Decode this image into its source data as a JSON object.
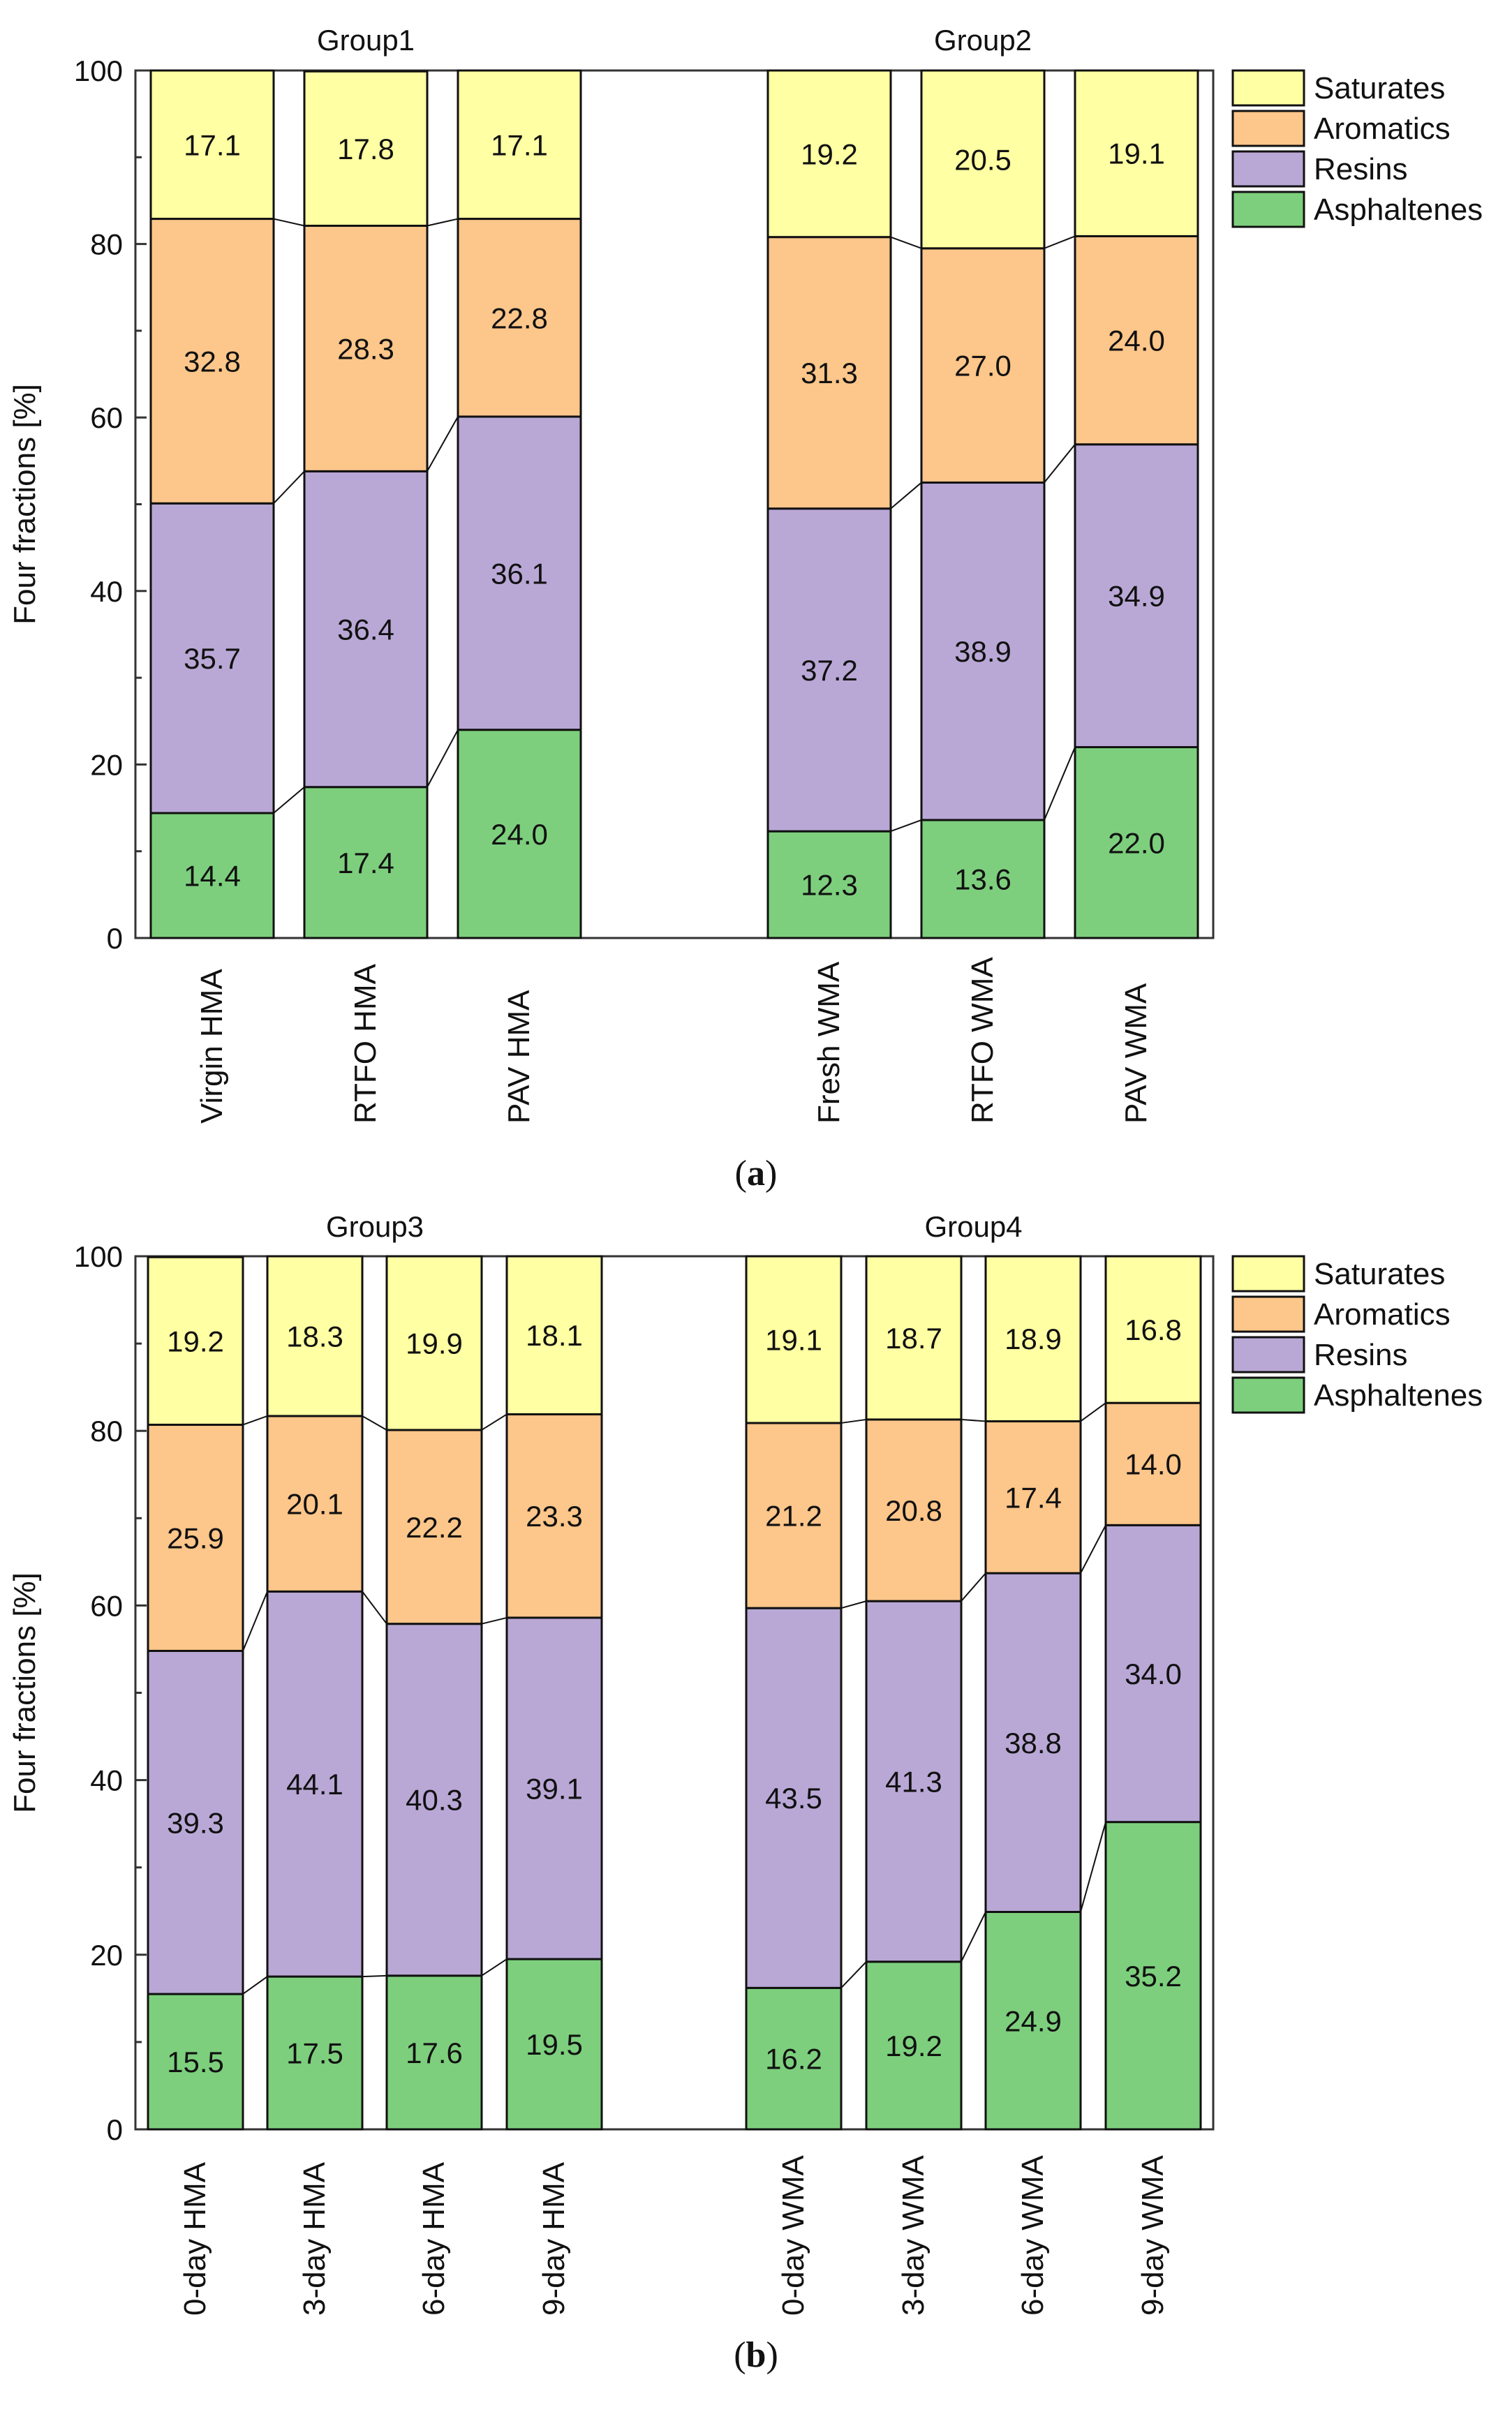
{
  "legend_colors": {
    "Saturates": "#FFFFA3",
    "Aromatics": "#FDC68A",
    "Resins": "#B9A8D6",
    "Asphaltenes": "#7DCF7D"
  },
  "captions": [
    "a",
    "b"
  ],
  "chart_data": [
    {
      "type": "bar",
      "stacked": true,
      "panel": "a",
      "ylabel": "Four fractions [%]",
      "ylim": [
        0,
        100
      ],
      "yticks": [
        0,
        20,
        40,
        60,
        80,
        100
      ],
      "legend": [
        "Saturates",
        "Aromatics",
        "Resins",
        "Asphaltenes"
      ],
      "legend_placement": "top-right outside",
      "groups": [
        {
          "title": "Group1",
          "categories": [
            "Virgin HMA",
            "RTFO HMA",
            "PAV HMA"
          ]
        },
        {
          "title": "Group2",
          "categories": [
            "Fresh WMA",
            "RTFO WMA",
            "PAV WMA"
          ]
        }
      ],
      "categories": [
        "Virgin HMA",
        "RTFO HMA",
        "PAV HMA",
        "Fresh WMA",
        "RTFO WMA",
        "PAV WMA"
      ],
      "series": [
        {
          "name": "Asphaltenes",
          "values": [
            14.4,
            17.4,
            24.0,
            12.3,
            13.6,
            22.0
          ]
        },
        {
          "name": "Resins",
          "values": [
            35.7,
            36.4,
            36.1,
            37.2,
            38.9,
            34.9
          ]
        },
        {
          "name": "Aromatics",
          "values": [
            32.8,
            28.3,
            22.8,
            31.3,
            27.0,
            24.0
          ]
        },
        {
          "name": "Saturates",
          "values": [
            17.1,
            17.8,
            17.1,
            19.2,
            20.5,
            19.1
          ]
        }
      ]
    },
    {
      "type": "bar",
      "stacked": true,
      "panel": "b",
      "ylabel": "Four fractions [%]",
      "ylim": [
        0,
        100
      ],
      "yticks": [
        0,
        20,
        40,
        60,
        80,
        100
      ],
      "legend": [
        "Saturates",
        "Aromatics",
        "Resins",
        "Asphaltenes"
      ],
      "legend_placement": "top-right outside",
      "groups": [
        {
          "title": "Group3",
          "categories": [
            "0-day HMA",
            "3-day HMA",
            "6-day HMA",
            "9-day HMA"
          ]
        },
        {
          "title": "Group4",
          "categories": [
            "0-day WMA",
            "3-day WMA",
            "6-day WMA",
            "9-day WMA"
          ]
        }
      ],
      "categories": [
        "0-day HMA",
        "3-day HMA",
        "6-day HMA",
        "9-day HMA",
        "0-day WMA",
        "3-day WMA",
        "6-day WMA",
        "9-day WMA"
      ],
      "series": [
        {
          "name": "Asphaltenes",
          "values": [
            15.5,
            17.5,
            17.6,
            19.5,
            16.2,
            19.2,
            24.9,
            35.2
          ]
        },
        {
          "name": "Resins",
          "values": [
            39.3,
            44.1,
            40.3,
            39.1,
            43.5,
            41.3,
            38.8,
            34.0
          ]
        },
        {
          "name": "Aromatics",
          "values": [
            25.9,
            20.1,
            22.2,
            23.3,
            21.2,
            20.8,
            17.4,
            14.0
          ]
        },
        {
          "name": "Saturates",
          "values": [
            19.2,
            18.3,
            19.9,
            18.1,
            19.1,
            18.7,
            18.9,
            16.8
          ]
        }
      ]
    }
  ]
}
